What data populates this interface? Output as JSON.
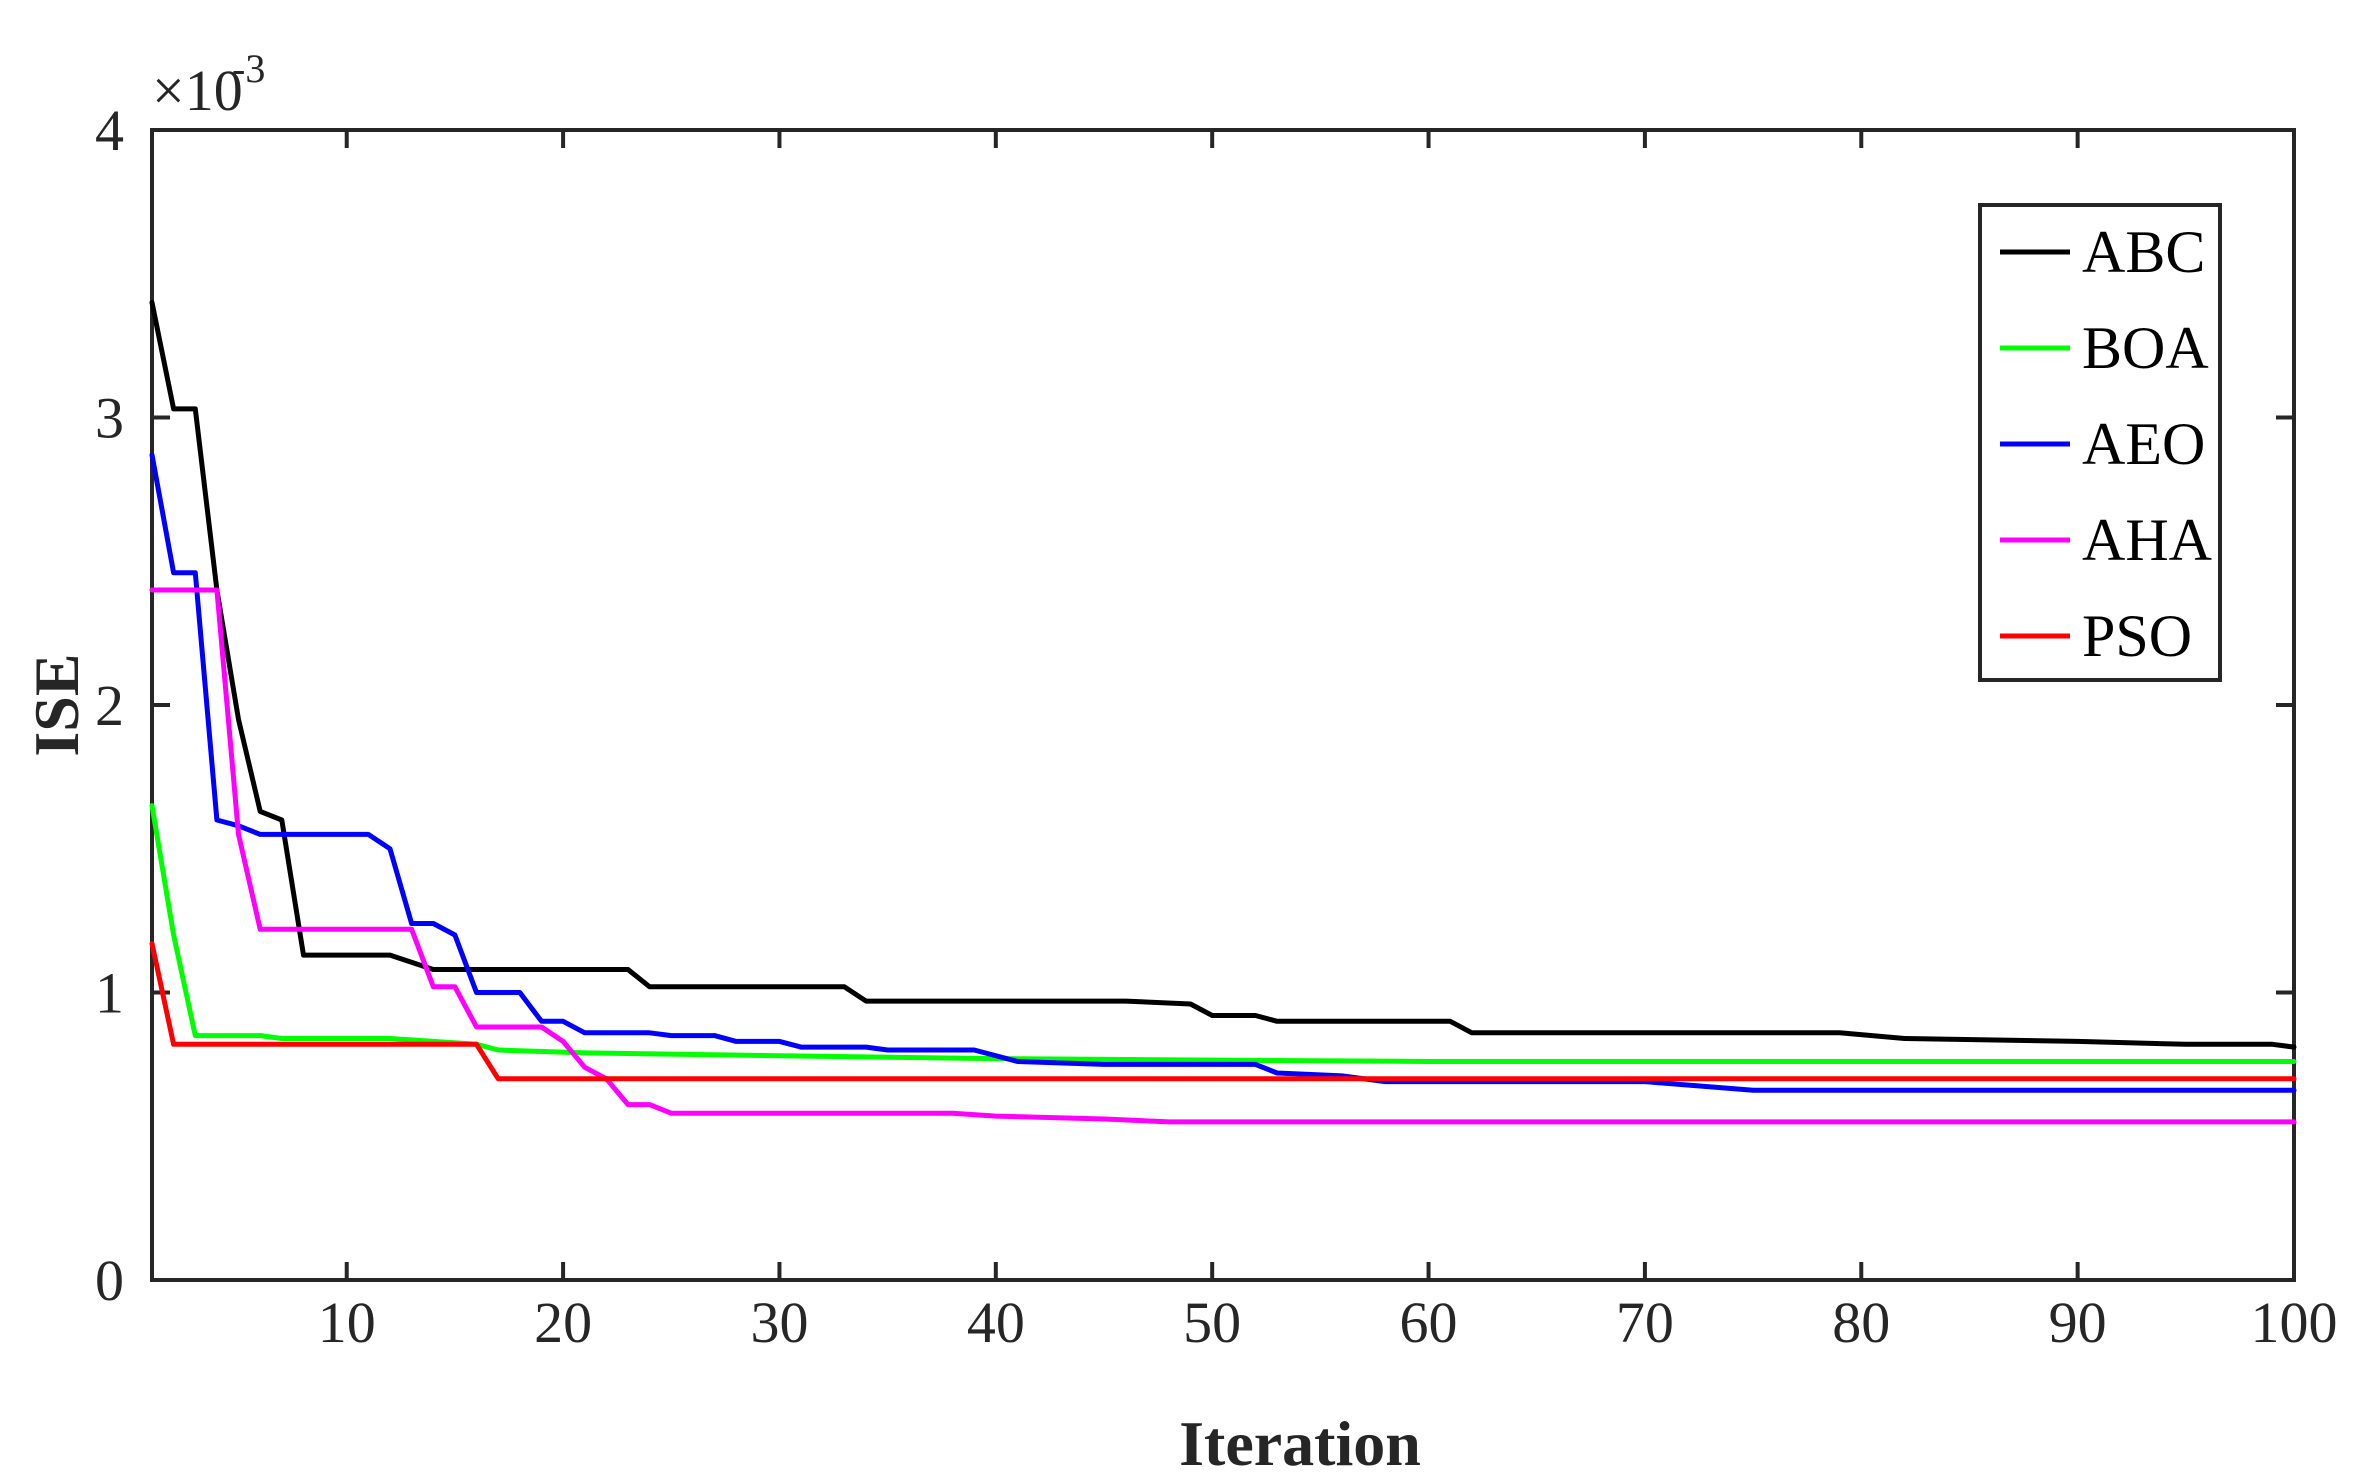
{
  "chart_data": {
    "type": "line",
    "title": "",
    "xlabel": "Iteration",
    "ylabel": "ISE",
    "xlim": [
      1,
      100
    ],
    "ylim": [
      0,
      0.004
    ],
    "y_exponent_label": "×10",
    "y_exponent_power": "-3",
    "xticks": [
      10,
      20,
      30,
      40,
      50,
      60,
      70,
      80,
      90,
      100
    ],
    "xtick_labels": [
      "10",
      "20",
      "30",
      "40",
      "50",
      "60",
      "70",
      "80",
      "90",
      "100"
    ],
    "yticks": [
      0,
      0.001,
      0.002,
      0.003,
      0.004
    ],
    "ytick_labels": [
      "0",
      "1",
      "2",
      "3",
      "4"
    ],
    "grid": false,
    "legend_position": "top-right",
    "series": [
      {
        "name": "ABC",
        "color": "#000000",
        "points": [
          [
            1,
            0.0034
          ],
          [
            2,
            0.00303
          ],
          [
            3,
            0.00303
          ],
          [
            4,
            0.0024
          ],
          [
            5,
            0.00195
          ],
          [
            6,
            0.00163
          ],
          [
            7,
            0.0016
          ],
          [
            8,
            0.00113
          ],
          [
            12,
            0.00113
          ],
          [
            14,
            0.00108
          ],
          [
            23,
            0.00108
          ],
          [
            24,
            0.00102
          ],
          [
            33,
            0.00102
          ],
          [
            34,
            0.00097
          ],
          [
            46,
            0.00097
          ],
          [
            49,
            0.00096
          ],
          [
            50,
            0.00092
          ],
          [
            52,
            0.00092
          ],
          [
            53,
            0.0009
          ],
          [
            61,
            0.0009
          ],
          [
            62,
            0.00086
          ],
          [
            79,
            0.00086
          ],
          [
            82,
            0.00084
          ],
          [
            90,
            0.00083
          ],
          [
            95,
            0.00082
          ],
          [
            99,
            0.00082
          ],
          [
            100,
            0.00081
          ]
        ]
      },
      {
        "name": "BOA",
        "color": "#00ff00",
        "points": [
          [
            1,
            0.00165
          ],
          [
            2,
            0.0012
          ],
          [
            3,
            0.00085
          ],
          [
            6,
            0.00085
          ],
          [
            7,
            0.00084
          ],
          [
            12,
            0.00084
          ],
          [
            14,
            0.00083
          ],
          [
            16,
            0.00082
          ],
          [
            17,
            0.0008
          ],
          [
            21,
            0.00079
          ],
          [
            30,
            0.00078
          ],
          [
            40,
            0.00077
          ],
          [
            60,
            0.00076
          ],
          [
            100,
            0.00076
          ]
        ]
      },
      {
        "name": "AEO",
        "color": "#0000ff",
        "points": [
          [
            1,
            0.00287
          ],
          [
            2,
            0.00246
          ],
          [
            3,
            0.00246
          ],
          [
            4,
            0.0016
          ],
          [
            5,
            0.00158
          ],
          [
            6,
            0.00155
          ],
          [
            11,
            0.00155
          ],
          [
            12,
            0.0015
          ],
          [
            13,
            0.00124
          ],
          [
            14,
            0.00124
          ],
          [
            15,
            0.0012
          ],
          [
            16,
            0.001
          ],
          [
            18,
            0.001
          ],
          [
            19,
            0.0009
          ],
          [
            20,
            0.0009
          ],
          [
            21,
            0.00086
          ],
          [
            24,
            0.00086
          ],
          [
            25,
            0.00085
          ],
          [
            27,
            0.00085
          ],
          [
            28,
            0.00083
          ],
          [
            30,
            0.00083
          ],
          [
            31,
            0.00081
          ],
          [
            34,
            0.00081
          ],
          [
            35,
            0.0008
          ],
          [
            39,
            0.0008
          ],
          [
            41,
            0.00076
          ],
          [
            45,
            0.00075
          ],
          [
            52,
            0.00075
          ],
          [
            53,
            0.00072
          ],
          [
            56,
            0.00071
          ],
          [
            58,
            0.00069
          ],
          [
            70,
            0.00069
          ],
          [
            75,
            0.00066
          ],
          [
            100,
            0.00066
          ]
        ]
      },
      {
        "name": "AHA",
        "color": "#ff00ff",
        "points": [
          [
            1,
            0.0024
          ],
          [
            4,
            0.0024
          ],
          [
            5,
            0.00155
          ],
          [
            6,
            0.00122
          ],
          [
            13,
            0.00122
          ],
          [
            14,
            0.00102
          ],
          [
            15,
            0.00102
          ],
          [
            16,
            0.00088
          ],
          [
            19,
            0.00088
          ],
          [
            20,
            0.00083
          ],
          [
            21,
            0.00074
          ],
          [
            22,
            0.0007
          ],
          [
            23,
            0.00061
          ],
          [
            24,
            0.00061
          ],
          [
            25,
            0.00058
          ],
          [
            38,
            0.00058
          ],
          [
            40,
            0.00057
          ],
          [
            45,
            0.00056
          ],
          [
            48,
            0.00055
          ],
          [
            100,
            0.00055
          ]
        ]
      },
      {
        "name": "PSO",
        "color": "#ff0000",
        "points": [
          [
            1,
            0.00117
          ],
          [
            2,
            0.00082
          ],
          [
            16,
            0.00082
          ],
          [
            17,
            0.0007
          ],
          [
            100,
            0.0007
          ]
        ]
      }
    ]
  }
}
